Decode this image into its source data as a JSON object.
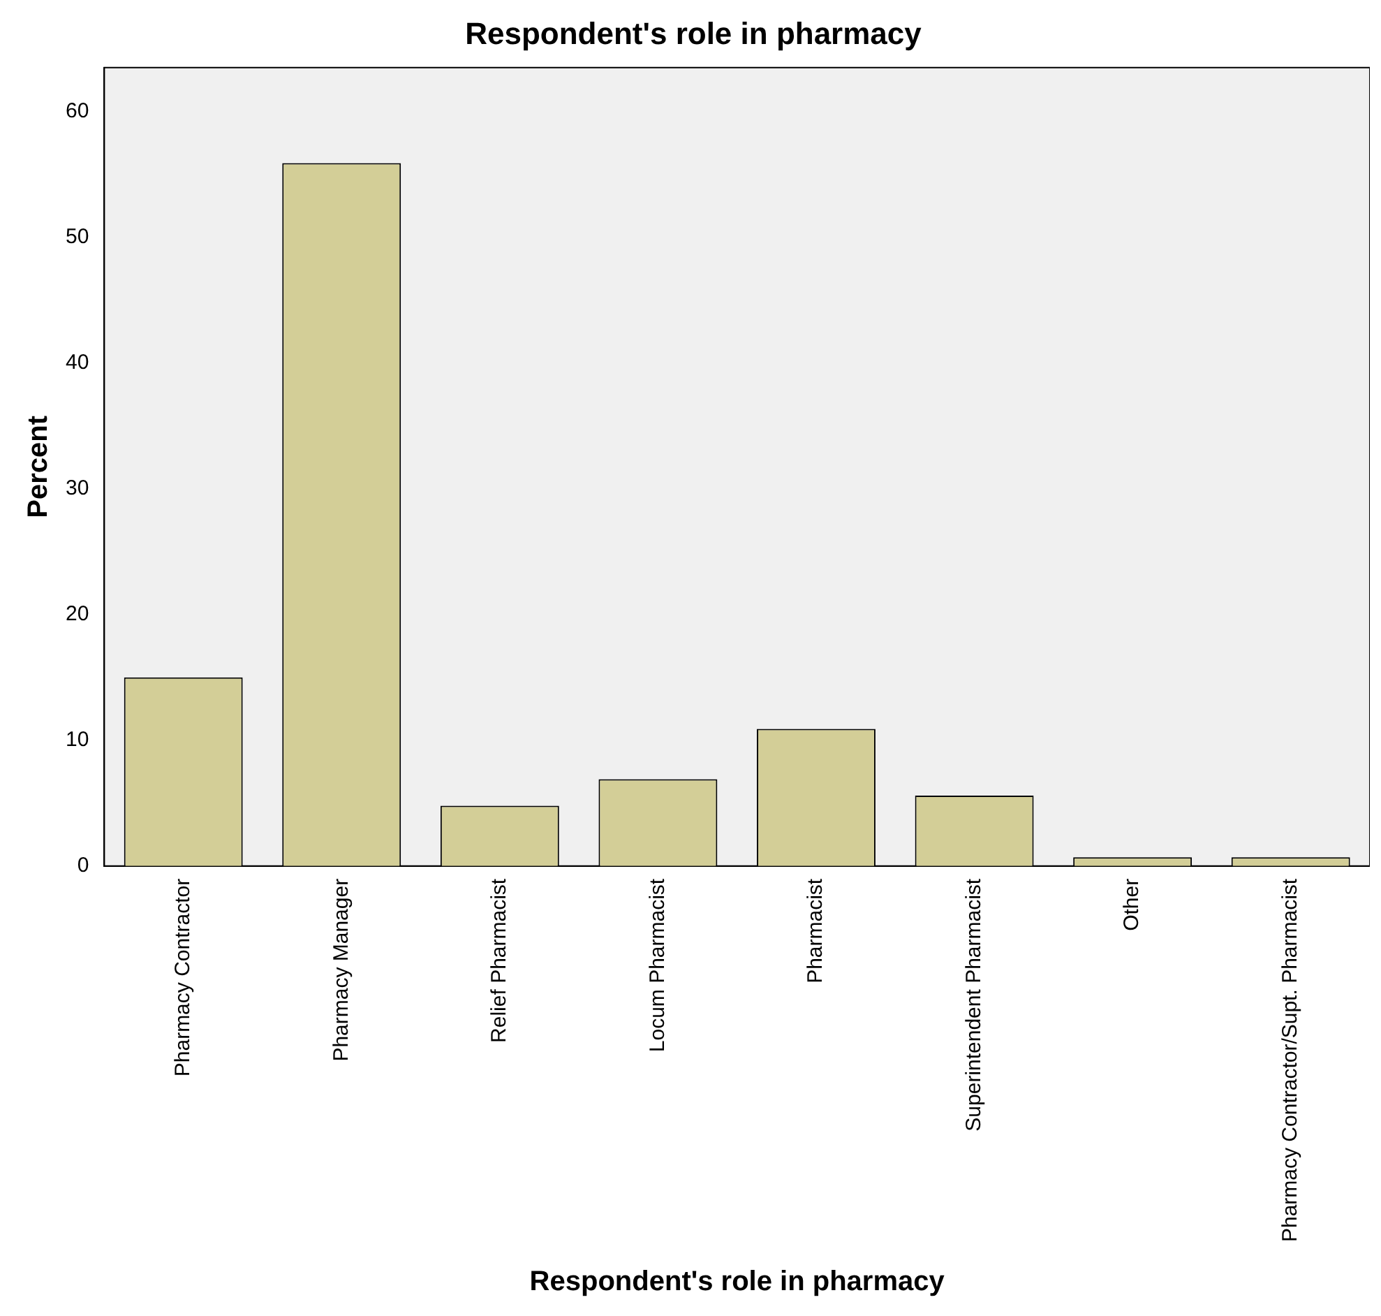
{
  "chart_data": {
    "type": "bar",
    "title": "Respondent's role in pharmacy",
    "xlabel": "Respondent's role in pharmacy",
    "ylabel": "Percent",
    "categories": [
      "Pharmacy Contractor",
      "Pharmacy Manager",
      "Relief Pharmacist",
      "Locum Pharmacist",
      "Pharmacist",
      "Superintendent Pharmacist",
      "Other",
      "Pharmacy Contractor/Supt. Pharmacist"
    ],
    "values": [
      15.0,
      55.9,
      4.8,
      6.9,
      10.9,
      5.6,
      0.7,
      0.7
    ],
    "color": "#d3ce97",
    "ylim": [
      0,
      63.5
    ],
    "yticks": [
      0,
      10,
      20,
      30,
      40,
      50,
      60
    ],
    "grid": false,
    "legend": false
  }
}
